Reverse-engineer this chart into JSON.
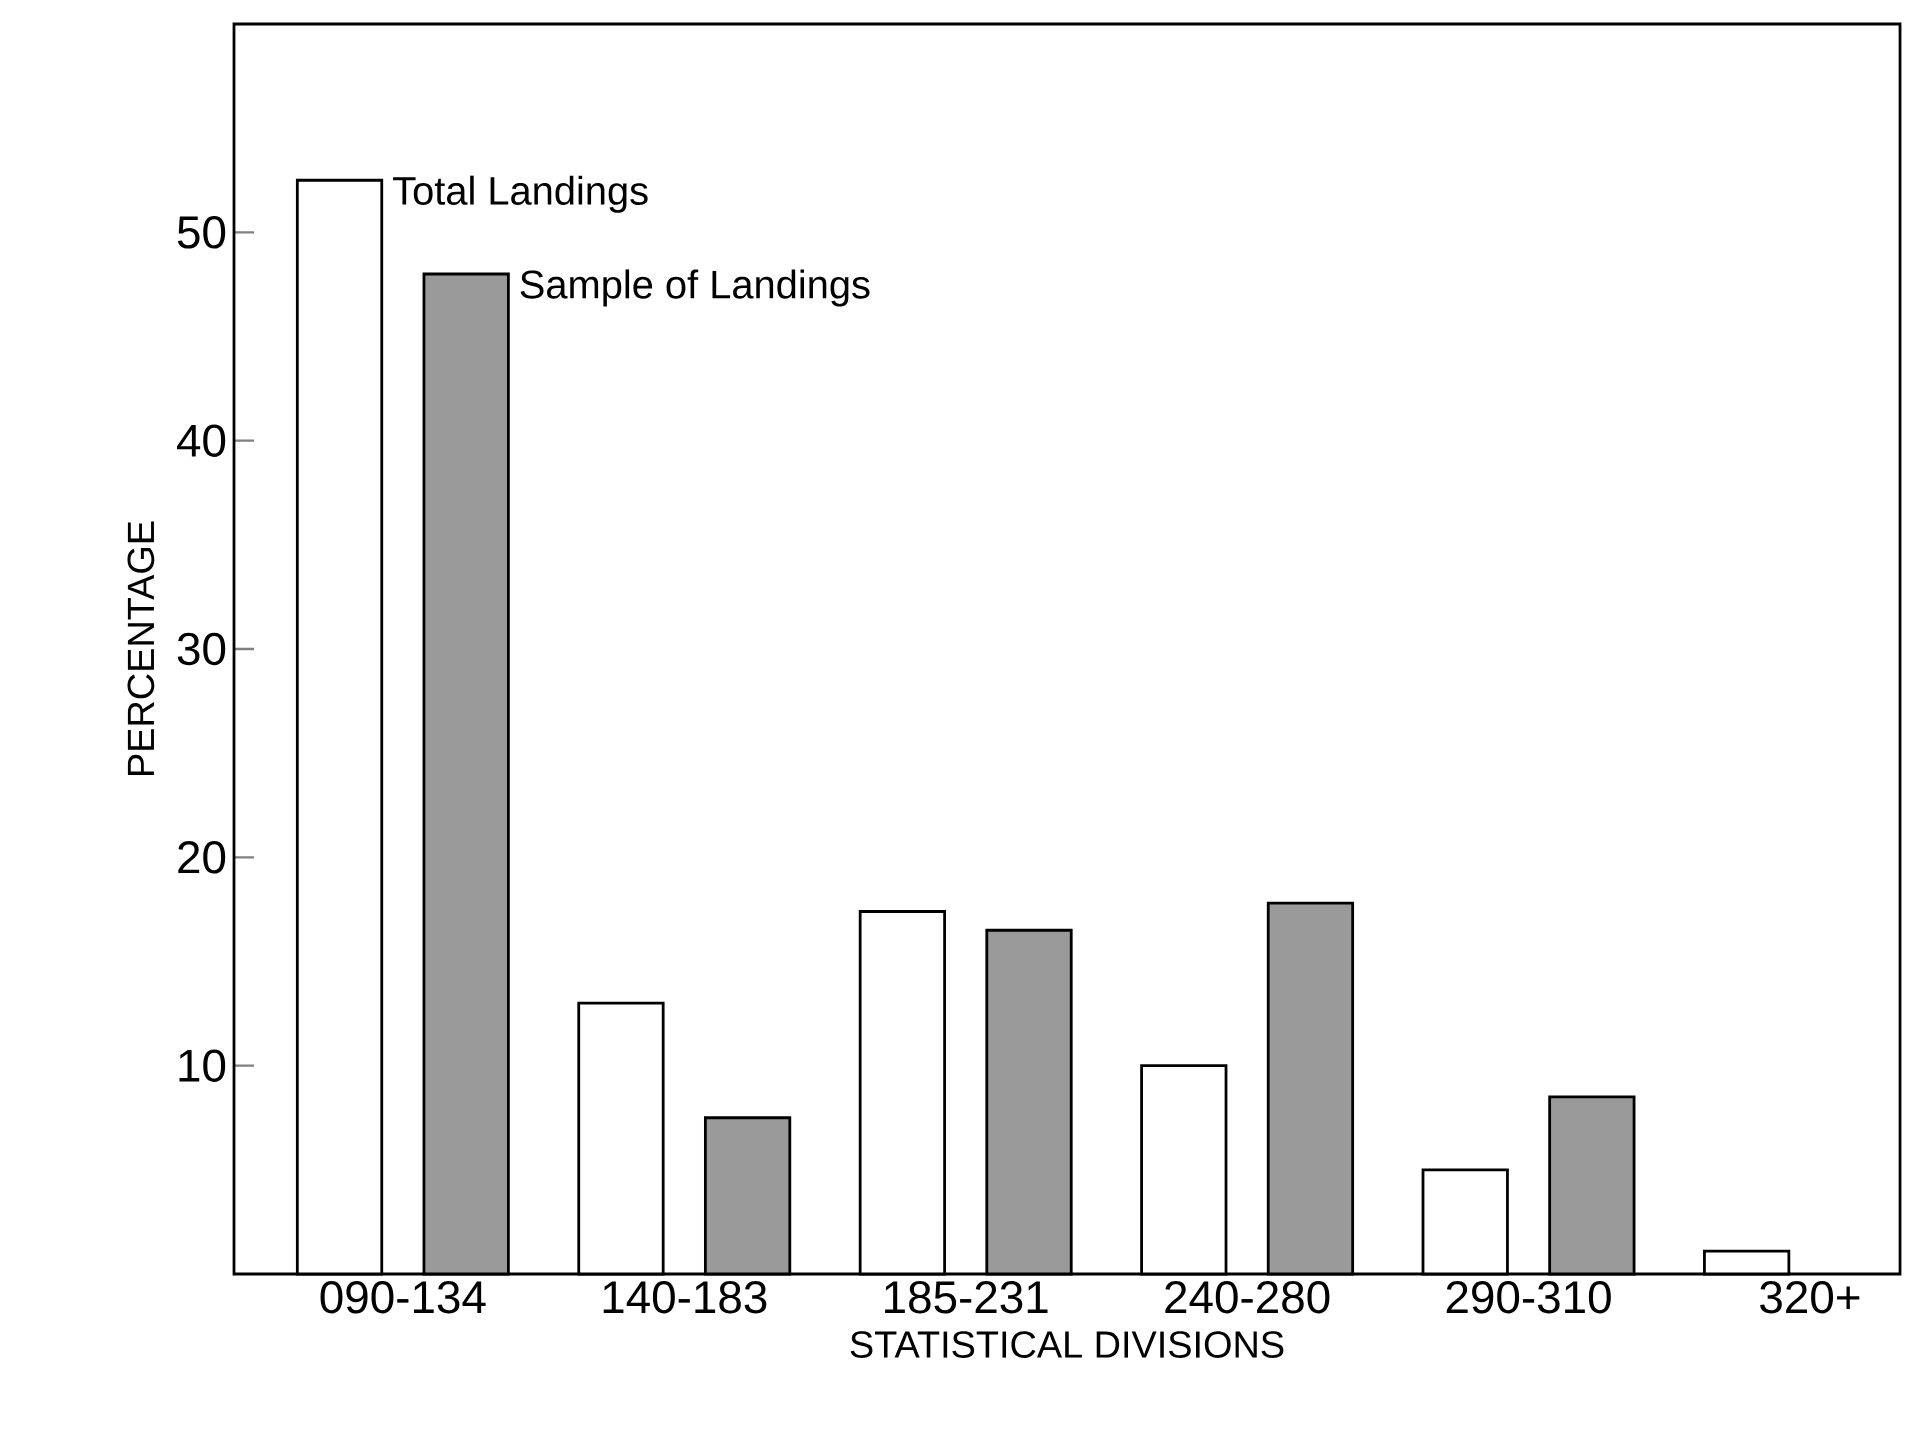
{
  "chart_data": {
    "type": "bar",
    "xlabel": "STATISTICAL DIVISIONS",
    "ylabel": "PERCENTAGE",
    "categories": [
      "090-134",
      "140-183",
      "185-231",
      "240-280",
      "290-310",
      "320+"
    ],
    "series": [
      {
        "name": "Total Landings",
        "color": "#ffffff",
        "values": [
          52.5,
          13,
          17.4,
          10,
          5,
          1.1
        ]
      },
      {
        "name": "Sample of Landings",
        "color": "#9a9a9a",
        "values": [
          48,
          7.5,
          16.5,
          17.8,
          8.5,
          null
        ]
      }
    ],
    "ylim": [
      0,
      60
    ],
    "yticks": [
      10,
      20,
      30,
      40,
      50
    ],
    "legend": false,
    "grid": false
  }
}
